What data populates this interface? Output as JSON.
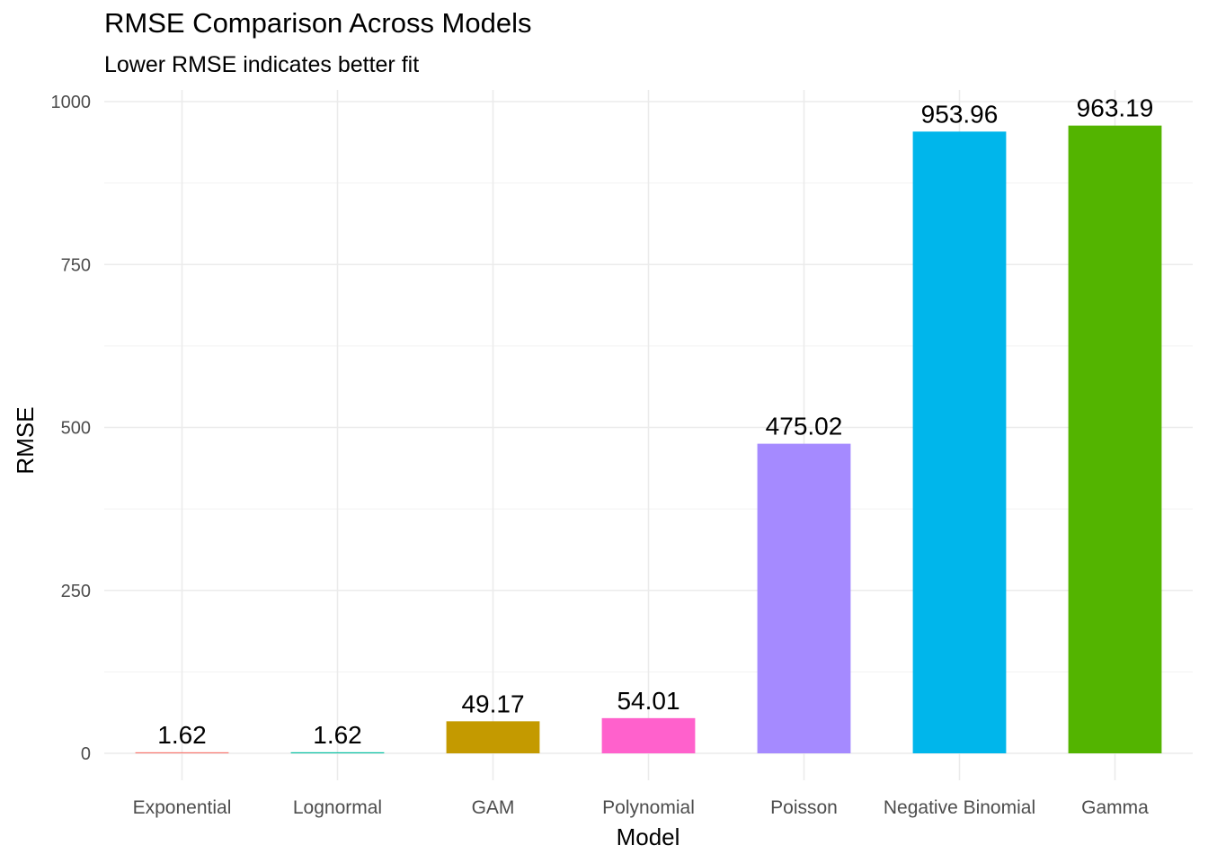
{
  "chart_data": {
    "type": "bar",
    "title": "RMSE Comparison Across Models",
    "subtitle": "Lower RMSE indicates better fit",
    "xlabel": "Model",
    "ylabel": "RMSE",
    "ylim": [
      0,
      1000
    ],
    "yticks": [
      0,
      250,
      500,
      750,
      1000
    ],
    "categories": [
      "Exponential",
      "Lognormal",
      "GAM",
      "Polynomial",
      "Poisson",
      "Negative Binomial",
      "Gamma"
    ],
    "values": [
      1.62,
      1.62,
      49.17,
      54.01,
      475.02,
      953.96,
      963.19
    ],
    "data_labels": [
      "1.62",
      "1.62",
      "49.17",
      "54.01",
      "475.02",
      "953.96",
      "963.19"
    ],
    "colors": [
      "#F8766D",
      "#00BFA0",
      "#C49A00",
      "#FF61CC",
      "#A58AFF",
      "#00B6EB",
      "#53B400"
    ],
    "grid": true,
    "legend": "none"
  }
}
